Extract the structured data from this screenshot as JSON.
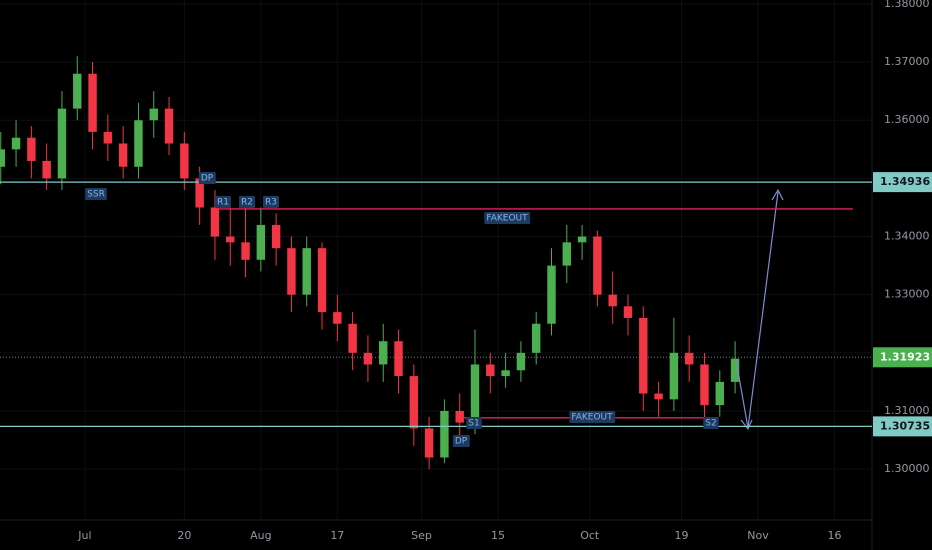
{
  "chart_data": {
    "type": "candlestick",
    "x": [
      -11,
      -9,
      -7,
      -5,
      -3,
      -1,
      1,
      3,
      5,
      7,
      9,
      11,
      13,
      15,
      17,
      19,
      21,
      23,
      25,
      27,
      29,
      31,
      33,
      35,
      37,
      39,
      41,
      43,
      45,
      47,
      49,
      51,
      53,
      55,
      57,
      59,
      61,
      63,
      65,
      67,
      69,
      71,
      73,
      75,
      77,
      79,
      81,
      83,
      85
    ],
    "open": [
      1.352,
      1.355,
      1.357,
      1.353,
      1.35,
      1.362,
      1.368,
      1.358,
      1.356,
      1.352,
      1.36,
      1.362,
      1.356,
      1.35,
      1.345,
      1.34,
      1.339,
      1.336,
      1.342,
      1.338,
      1.33,
      1.338,
      1.327,
      1.325,
      1.32,
      1.318,
      1.322,
      1.316,
      1.307,
      1.302,
      1.31,
      1.308,
      1.318,
      1.316,
      1.317,
      1.32,
      1.325,
      1.335,
      1.339,
      1.34,
      1.33,
      1.328,
      1.326,
      1.313,
      1.312,
      1.32,
      1.318,
      1.311,
      1.315
    ],
    "high": [
      1.358,
      1.36,
      1.359,
      1.356,
      1.365,
      1.371,
      1.37,
      1.361,
      1.359,
      1.363,
      1.365,
      1.364,
      1.358,
      1.352,
      1.348,
      1.345,
      1.345,
      1.345,
      1.344,
      1.34,
      1.34,
      1.339,
      1.33,
      1.327,
      1.323,
      1.325,
      1.324,
      1.318,
      1.309,
      1.312,
      1.313,
      1.324,
      1.32,
      1.32,
      1.322,
      1.327,
      1.338,
      1.342,
      1.342,
      1.341,
      1.334,
      1.33,
      1.328,
      1.315,
      1.326,
      1.323,
      1.32,
      1.317,
      1.322
    ],
    "low": [
      1.349,
      1.352,
      1.35,
      1.348,
      1.348,
      1.36,
      1.355,
      1.353,
      1.35,
      1.35,
      1.357,
      1.354,
      1.348,
      1.342,
      1.336,
      1.335,
      1.333,
      1.334,
      1.335,
      1.327,
      1.328,
      1.324,
      1.322,
      1.317,
      1.315,
      1.315,
      1.313,
      1.304,
      1.3,
      1.301,
      1.305,
      1.306,
      1.313,
      1.314,
      1.315,
      1.318,
      1.323,
      1.332,
      1.336,
      1.328,
      1.325,
      1.323,
      1.31,
      1.309,
      1.31,
      1.315,
      1.308,
      1.309,
      1.313
    ],
    "close": [
      1.355,
      1.357,
      1.353,
      1.35,
      1.362,
      1.368,
      1.358,
      1.356,
      1.352,
      1.36,
      1.362,
      1.356,
      1.35,
      1.345,
      1.34,
      1.339,
      1.336,
      1.342,
      1.338,
      1.33,
      1.338,
      1.327,
      1.325,
      1.32,
      1.318,
      1.322,
      1.316,
      1.307,
      1.302,
      1.31,
      1.308,
      1.318,
      1.316,
      1.317,
      1.32,
      1.325,
      1.335,
      1.339,
      1.34,
      1.33,
      1.328,
      1.326,
      1.313,
      1.312,
      1.32,
      1.318,
      1.311,
      1.315,
      1.319
    ],
    "up_color": "#4caf50",
    "down_color": "#f23645",
    "xlim": [
      -11.1,
      102.9
    ],
    "ylim": [
      1.29125,
      1.38068
    ],
    "xticks": [
      {
        "value": 0,
        "label": "Jul"
      },
      {
        "value": 13,
        "label": "20"
      },
      {
        "value": 23,
        "label": "Aug"
      },
      {
        "value": 33,
        "label": "17"
      },
      {
        "value": 44,
        "label": "Sep"
      },
      {
        "value": 54,
        "label": "15"
      },
      {
        "value": 66,
        "label": "Oct"
      },
      {
        "value": 78,
        "label": "19"
      },
      {
        "value": 88,
        "label": "Nov"
      },
      {
        "value": 98,
        "label": "16"
      }
    ],
    "yticks": [
      {
        "value": 1.3,
        "label": "1.30000"
      },
      {
        "value": 1.31,
        "label": "1.31000"
      },
      {
        "value": 1.32,
        "label": "1.32000"
      },
      {
        "value": 1.33,
        "label": "1.33000"
      },
      {
        "value": 1.34,
        "label": "1.34000"
      },
      {
        "value": 1.35,
        "label": "1.35000"
      },
      {
        "value": 1.36,
        "label": "1.36000"
      },
      {
        "value": 1.37,
        "label": "1.37000"
      },
      {
        "value": 1.38,
        "label": "1.38000"
      }
    ],
    "levels": [
      {
        "value": 1.34936,
        "label": "1.34936",
        "color": "#80cbc4"
      },
      {
        "value": 1.30735,
        "label": "1.30735",
        "color": "#80cbc4"
      },
      {
        "value": 1.31923,
        "label": "1.31923",
        "color": "#4caf50"
      },
      {
        "value": 1.34475,
        "color": "#e91e63"
      },
      {
        "value": 1.30882,
        "color": "#e91e63"
      }
    ],
    "annotations": [
      "SSR",
      "DP",
      "R1",
      "R2",
      "R3",
      "FAKEOUT",
      "FAKEOUT",
      "S1",
      "DP",
      "S2"
    ]
  }
}
